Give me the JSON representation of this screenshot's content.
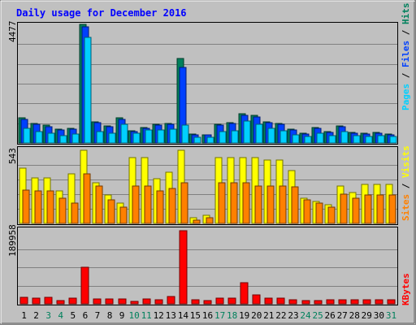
{
  "chart_data": [
    {
      "type": "bar",
      "title": "Daily usage for December 2016",
      "ymax_label": "4477",
      "ylim": [
        0,
        4477
      ],
      "right_label": {
        "parts": [
          "Pages",
          "Files",
          "Hits"
        ],
        "separator": " / "
      },
      "series": [
        {
          "name": "Hits",
          "color": "#00805c",
          "values": [
            940,
            740,
            660,
            530,
            540,
            4477,
            810,
            640,
            940,
            460,
            570,
            690,
            730,
            3200,
            350,
            320,
            720,
            780,
            1100,
            1050,
            800,
            740,
            530,
            360,
            570,
            430,
            630,
            390,
            360,
            400,
            330
          ]
        },
        {
          "name": "Files",
          "color": "#0040ff",
          "values": [
            900,
            700,
            620,
            500,
            510,
            4380,
            780,
            610,
            900,
            440,
            540,
            660,
            700,
            2850,
            320,
            300,
            680,
            750,
            1030,
            990,
            770,
            700,
            500,
            340,
            540,
            410,
            600,
            370,
            340,
            380,
            310
          ]
        },
        {
          "name": "Pages",
          "color": "#00d0ff",
          "values": [
            560,
            420,
            360,
            270,
            350,
            4000,
            440,
            370,
            700,
            380,
            500,
            480,
            520,
            660,
            210,
            200,
            440,
            460,
            830,
            700,
            550,
            470,
            310,
            250,
            370,
            290,
            420,
            270,
            240,
            280,
            230
          ]
        }
      ]
    },
    {
      "type": "bar",
      "ymax_label": "543",
      "ylim": [
        0,
        543
      ],
      "right_label": {
        "parts": [
          "Sites",
          "Visits"
        ],
        "separator": " / "
      },
      "series": [
        {
          "name": "Visits",
          "color": "#ffff00",
          "values": [
            410,
            340,
            340,
            240,
            370,
            543,
            300,
            210,
            150,
            490,
            490,
            330,
            380,
            543,
            40,
            60,
            490,
            490,
            490,
            490,
            470,
            470,
            390,
            190,
            160,
            140,
            280,
            230,
            290,
            290,
            290
          ]
        },
        {
          "name": "Sites",
          "color": "#ff8000",
          "values": [
            250,
            240,
            240,
            190,
            150,
            370,
            280,
            175,
            120,
            280,
            280,
            240,
            260,
            300,
            25,
            40,
            300,
            300,
            300,
            280,
            280,
            280,
            270,
            175,
            150,
            120,
            220,
            190,
            210,
            210,
            210
          ]
        }
      ]
    },
    {
      "type": "bar",
      "ymax_label": "189958",
      "ylim": [
        0,
        189958
      ],
      "right_label": {
        "parts": [
          "KBytes"
        ],
        "separator": ""
      },
      "series": [
        {
          "name": "KBytes",
          "color": "#ff0000",
          "values": [
            16000,
            15000,
            16000,
            8000,
            15000,
            95000,
            13000,
            12000,
            13000,
            7000,
            12000,
            11000,
            18000,
            189958,
            10000,
            8000,
            15000,
            15000,
            54000,
            24000,
            14000,
            14000,
            11000,
            9000,
            9000,
            11000,
            10000,
            11000,
            11000,
            10000,
            11000
          ]
        }
      ]
    }
  ],
  "days": [
    "1",
    "2",
    "3",
    "4",
    "5",
    "6",
    "7",
    "8",
    "9",
    "10",
    "11",
    "12",
    "13",
    "14",
    "15",
    "16",
    "17",
    "18",
    "19",
    "20",
    "21",
    "22",
    "23",
    "24",
    "25",
    "26",
    "27",
    "28",
    "29",
    "30",
    "31"
  ],
  "weekend_days": [
    3,
    4,
    10,
    11,
    17,
    18,
    24,
    25,
    31
  ],
  "colors": {
    "background": "#c0c0c0",
    "plot_background": "#c0c0c0",
    "title": "#0000ff",
    "gridline": "#808080",
    "weekday_label": "#000000",
    "weekend_label": "#00805c",
    "axis_label": "#000000"
  }
}
